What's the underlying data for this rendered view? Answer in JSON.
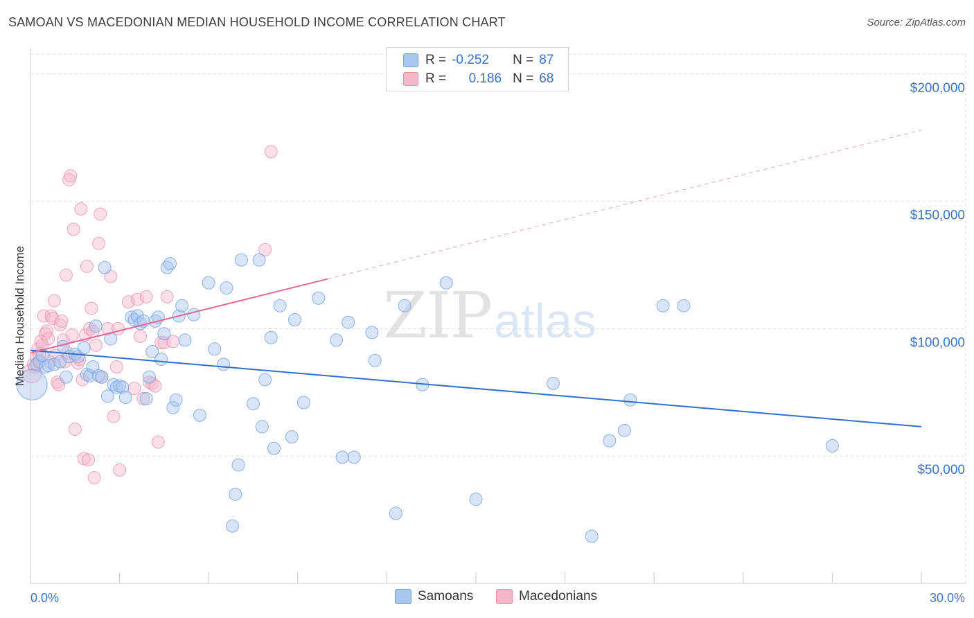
{
  "title": "SAMOAN VS MACEDONIAN MEDIAN HOUSEHOLD INCOME CORRELATION CHART",
  "source": "Source: ZipAtlas.com",
  "watermark": {
    "zip": "ZIP",
    "atlas": "atlas"
  },
  "legend": {
    "rows": [
      {
        "r_label": "R =",
        "r_value": "-0.252",
        "n_label": "N =",
        "n_value": "87"
      },
      {
        "r_label": "R =",
        "r_value": "0.186",
        "n_label": "N =",
        "n_value": "68"
      }
    ]
  },
  "bottom_legend": [
    "Samoans",
    "Macedonians"
  ],
  "colors": {
    "blue_fill": "#a9c6f0",
    "blue_stroke": "#6f9fdf",
    "blue_line": "#2f6fcf",
    "pink_fill": "#f5b8cb",
    "pink_stroke": "#e98aa8",
    "pink_line": "#e06892",
    "grid": "#d9d9d9",
    "axis_text": "#3a72c9"
  },
  "chart_data": {
    "type": "scatter",
    "title": "SAMOAN VS MACEDONIAN MEDIAN HOUSEHOLD INCOME CORRELATION CHART",
    "xlabel": "",
    "ylabel": "Median Household Income",
    "xlim": [
      0,
      30
    ],
    "ylim": [
      0,
      210000
    ],
    "x_tick_labels": [
      "0.0%",
      "30.0%"
    ],
    "y_ticks": [
      50000,
      100000,
      150000,
      200000
    ],
    "y_tick_labels": [
      "$50,000",
      "$100,000",
      "$150,000",
      "$200,000"
    ],
    "legend_position": "top-center",
    "series": [
      {
        "name": "Samoans",
        "r": -0.252,
        "n": 87,
        "trend": {
          "x": [
            0,
            30
          ],
          "y": [
            91500,
            61500
          ],
          "style": "solid"
        },
        "points": [
          {
            "x": 0.05,
            "y": 78000,
            "s": 22
          },
          {
            "x": 0.2,
            "y": 86000
          },
          {
            "x": 0.3,
            "y": 87000
          },
          {
            "x": 0.4,
            "y": 89500
          },
          {
            "x": 0.5,
            "y": 85000
          },
          {
            "x": 0.6,
            "y": 85500
          },
          {
            "x": 0.8,
            "y": 86000
          },
          {
            "x": 1.0,
            "y": 87000
          },
          {
            "x": 1.1,
            "y": 93000
          },
          {
            "x": 1.2,
            "y": 81000
          },
          {
            "x": 1.3,
            "y": 89000
          },
          {
            "x": 1.5,
            "y": 90000
          },
          {
            "x": 1.6,
            "y": 89000
          },
          {
            "x": 1.8,
            "y": 92500
          },
          {
            "x": 1.9,
            "y": 82000
          },
          {
            "x": 2.0,
            "y": 81500
          },
          {
            "x": 2.1,
            "y": 85000
          },
          {
            "x": 2.2,
            "y": 101000
          },
          {
            "x": 2.3,
            "y": 81500
          },
          {
            "x": 2.4,
            "y": 81000
          },
          {
            "x": 2.5,
            "y": 124000
          },
          {
            "x": 2.6,
            "y": 73500
          },
          {
            "x": 2.7,
            "y": 96000
          },
          {
            "x": 2.8,
            "y": 78000
          },
          {
            "x": 2.9,
            "y": 77000
          },
          {
            "x": 3.0,
            "y": 77500
          },
          {
            "x": 3.1,
            "y": 77000
          },
          {
            "x": 3.2,
            "y": 73000
          },
          {
            "x": 3.4,
            "y": 104500
          },
          {
            "x": 3.5,
            "y": 103500
          },
          {
            "x": 3.6,
            "y": 105000
          },
          {
            "x": 3.7,
            "y": 102000
          },
          {
            "x": 3.8,
            "y": 103000
          },
          {
            "x": 3.9,
            "y": 72500
          },
          {
            "x": 4.0,
            "y": 81000
          },
          {
            "x": 4.1,
            "y": 91000
          },
          {
            "x": 4.2,
            "y": 103000
          },
          {
            "x": 4.3,
            "y": 104500
          },
          {
            "x": 4.4,
            "y": 88000
          },
          {
            "x": 4.5,
            "y": 98000
          },
          {
            "x": 4.6,
            "y": 124000
          },
          {
            "x": 4.7,
            "y": 125500
          },
          {
            "x": 4.8,
            "y": 69000
          },
          {
            "x": 4.9,
            "y": 72000
          },
          {
            "x": 5.0,
            "y": 105000
          },
          {
            "x": 5.1,
            "y": 109000
          },
          {
            "x": 5.2,
            "y": 95500
          },
          {
            "x": 5.5,
            "y": 105500
          },
          {
            "x": 5.7,
            "y": 66000
          },
          {
            "x": 6.0,
            "y": 118000
          },
          {
            "x": 6.2,
            "y": 92000
          },
          {
            "x": 6.5,
            "y": 86000
          },
          {
            "x": 6.6,
            "y": 116000
          },
          {
            "x": 6.8,
            "y": 22500
          },
          {
            "x": 6.9,
            "y": 35000
          },
          {
            "x": 7.0,
            "y": 46500
          },
          {
            "x": 7.1,
            "y": 127000
          },
          {
            "x": 7.5,
            "y": 70500
          },
          {
            "x": 7.7,
            "y": 127000
          },
          {
            "x": 7.8,
            "y": 61500
          },
          {
            "x": 7.9,
            "y": 80000
          },
          {
            "x": 8.1,
            "y": 96500
          },
          {
            "x": 8.2,
            "y": 53000
          },
          {
            "x": 8.4,
            "y": 109000
          },
          {
            "x": 8.8,
            "y": 57500
          },
          {
            "x": 8.9,
            "y": 103500
          },
          {
            "x": 9.2,
            "y": 71000
          },
          {
            "x": 9.7,
            "y": 112000
          },
          {
            "x": 10.3,
            "y": 95500
          },
          {
            "x": 10.5,
            "y": 49500
          },
          {
            "x": 10.7,
            "y": 102500
          },
          {
            "x": 10.9,
            "y": 49500
          },
          {
            "x": 11.5,
            "y": 98500
          },
          {
            "x": 11.6,
            "y": 87500
          },
          {
            "x": 12.3,
            "y": 27500
          },
          {
            "x": 12.6,
            "y": 109000
          },
          {
            "x": 13.2,
            "y": 78000
          },
          {
            "x": 14.0,
            "y": 118000
          },
          {
            "x": 15.0,
            "y": 33000
          },
          {
            "x": 17.6,
            "y": 78500
          },
          {
            "x": 18.9,
            "y": 18500
          },
          {
            "x": 19.5,
            "y": 56000
          },
          {
            "x": 20.0,
            "y": 60000
          },
          {
            "x": 20.2,
            "y": 72000
          },
          {
            "x": 21.3,
            "y": 109000
          },
          {
            "x": 22.0,
            "y": 109000
          },
          {
            "x": 27.0,
            "y": 54000
          }
        ]
      },
      {
        "name": "Macedonians",
        "r": 0.186,
        "n": 68,
        "trend": {
          "x": [
            0,
            10
          ],
          "y": [
            90500,
            119500
          ],
          "style": "solid",
          "dashed_extension": {
            "x": [
              10,
              30
            ],
            "y": [
              119500,
              178000
            ]
          }
        },
        "points": [
          {
            "x": 0.05,
            "y": 82500,
            "s": 14
          },
          {
            "x": 0.1,
            "y": 86000
          },
          {
            "x": 0.15,
            "y": 85000
          },
          {
            "x": 0.2,
            "y": 89000
          },
          {
            "x": 0.25,
            "y": 92000
          },
          {
            "x": 0.3,
            "y": 90000
          },
          {
            "x": 0.35,
            "y": 95000
          },
          {
            "x": 0.4,
            "y": 93500
          },
          {
            "x": 0.45,
            "y": 105000
          },
          {
            "x": 0.5,
            "y": 98000
          },
          {
            "x": 0.55,
            "y": 99000
          },
          {
            "x": 0.6,
            "y": 96000
          },
          {
            "x": 0.65,
            "y": 87000
          },
          {
            "x": 0.7,
            "y": 105000
          },
          {
            "x": 0.75,
            "y": 104000
          },
          {
            "x": 0.8,
            "y": 111000
          },
          {
            "x": 0.85,
            "y": 89500
          },
          {
            "x": 0.9,
            "y": 79000
          },
          {
            "x": 0.95,
            "y": 78000
          },
          {
            "x": 1.0,
            "y": 101500
          },
          {
            "x": 1.05,
            "y": 103000
          },
          {
            "x": 1.1,
            "y": 95500
          },
          {
            "x": 1.15,
            "y": 87000
          },
          {
            "x": 1.2,
            "y": 121000
          },
          {
            "x": 1.25,
            "y": 90500
          },
          {
            "x": 1.3,
            "y": 158500
          },
          {
            "x": 1.35,
            "y": 160000
          },
          {
            "x": 1.4,
            "y": 97500
          },
          {
            "x": 1.45,
            "y": 139000
          },
          {
            "x": 1.5,
            "y": 60500
          },
          {
            "x": 1.6,
            "y": 86500
          },
          {
            "x": 1.65,
            "y": 88000
          },
          {
            "x": 1.7,
            "y": 147000
          },
          {
            "x": 1.75,
            "y": 80000
          },
          {
            "x": 1.8,
            "y": 49000
          },
          {
            "x": 1.85,
            "y": 97500
          },
          {
            "x": 1.9,
            "y": 124500
          },
          {
            "x": 1.95,
            "y": 48500
          },
          {
            "x": 2.0,
            "y": 100000
          },
          {
            "x": 2.05,
            "y": 108000
          },
          {
            "x": 2.1,
            "y": 99000
          },
          {
            "x": 2.15,
            "y": 41500
          },
          {
            "x": 2.2,
            "y": 93500
          },
          {
            "x": 2.3,
            "y": 133500
          },
          {
            "x": 2.35,
            "y": 145000
          },
          {
            "x": 2.4,
            "y": 81000
          },
          {
            "x": 2.6,
            "y": 100000
          },
          {
            "x": 2.7,
            "y": 120500
          },
          {
            "x": 2.8,
            "y": 65500
          },
          {
            "x": 2.9,
            "y": 85000
          },
          {
            "x": 2.95,
            "y": 100000
          },
          {
            "x": 3.0,
            "y": 44500
          },
          {
            "x": 3.3,
            "y": 110500
          },
          {
            "x": 3.5,
            "y": 76500
          },
          {
            "x": 3.6,
            "y": 111500
          },
          {
            "x": 3.7,
            "y": 97000
          },
          {
            "x": 3.8,
            "y": 72500
          },
          {
            "x": 3.9,
            "y": 112500
          },
          {
            "x": 4.0,
            "y": 79000
          },
          {
            "x": 4.1,
            "y": 78500
          },
          {
            "x": 4.2,
            "y": 77500
          },
          {
            "x": 4.3,
            "y": 55500
          },
          {
            "x": 4.4,
            "y": 94500
          },
          {
            "x": 4.5,
            "y": 94500
          },
          {
            "x": 4.6,
            "y": 112500
          },
          {
            "x": 4.8,
            "y": 95000
          },
          {
            "x": 7.9,
            "y": 131000
          },
          {
            "x": 8.1,
            "y": 169500
          }
        ]
      }
    ]
  }
}
